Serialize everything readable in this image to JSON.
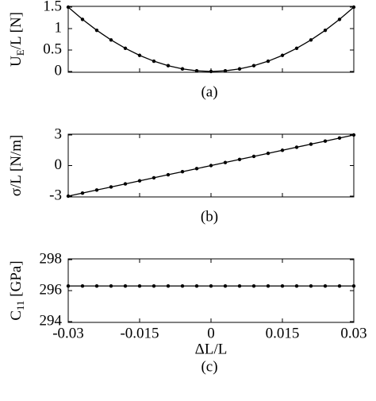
{
  "chart_data": [
    {
      "type": "line",
      "caption": "(a)",
      "ylabel": {
        "main": "U",
        "sub": "E",
        "rest": "/L [N]"
      },
      "x": [
        -0.03,
        -0.027,
        -0.024,
        -0.021,
        -0.018,
        -0.015,
        -0.012,
        -0.009,
        -0.006,
        -0.003,
        0,
        0.003,
        0.006,
        0.009,
        0.012,
        0.015,
        0.018,
        0.021,
        0.024,
        0.027,
        0.03
      ],
      "values": [
        1.5,
        1.215,
        0.96,
        0.735,
        0.54,
        0.375,
        0.24,
        0.135,
        0.06,
        0.015,
        0,
        0.015,
        0.06,
        0.135,
        0.24,
        0.375,
        0.54,
        0.735,
        0.96,
        1.215,
        1.5
      ],
      "color": "#000000",
      "xlim": [
        -0.03,
        0.03
      ],
      "xticks": [
        -0.03,
        -0.015,
        0,
        0.015,
        0.03
      ],
      "ylim": [
        0,
        1.5
      ],
      "yticks": [
        0,
        0.5,
        1,
        1.5
      ]
    },
    {
      "type": "line",
      "caption": "(b)",
      "ylabel": {
        "main": "σ/L [N/m]"
      },
      "x": [
        -0.03,
        -0.027,
        -0.024,
        -0.021,
        -0.018,
        -0.015,
        -0.012,
        -0.009,
        -0.006,
        -0.003,
        0,
        0.003,
        0.006,
        0.009,
        0.012,
        0.015,
        0.018,
        0.021,
        0.024,
        0.027,
        0.03
      ],
      "values": [
        -3,
        -2.7,
        -2.4,
        -2.1,
        -1.8,
        -1.5,
        -1.2,
        -0.9,
        -0.6,
        -0.3,
        0,
        0.3,
        0.6,
        0.9,
        1.2,
        1.5,
        1.8,
        2.1,
        2.4,
        2.7,
        3
      ],
      "color": "#000000",
      "xlim": [
        -0.03,
        0.03
      ],
      "xticks": [
        -0.03,
        -0.015,
        0,
        0.015,
        0.03
      ],
      "ylim": [
        -3,
        3
      ],
      "yticks": [
        -3,
        0,
        3
      ]
    },
    {
      "type": "line",
      "caption": "(c)",
      "ylabel": {
        "main": "C",
        "sub": "11",
        "rest": " [GPa]"
      },
      "xlabel": "ΔL/L",
      "x": [
        -0.03,
        -0.027,
        -0.024,
        -0.021,
        -0.018,
        -0.015,
        -0.012,
        -0.009,
        -0.006,
        -0.003,
        0,
        0.003,
        0.006,
        0.009,
        0.012,
        0.015,
        0.018,
        0.021,
        0.024,
        0.027,
        0.03
      ],
      "values": [
        296.3,
        296.3,
        296.3,
        296.3,
        296.3,
        296.3,
        296.3,
        296.3,
        296.3,
        296.3,
        296.3,
        296.3,
        296.3,
        296.3,
        296.3,
        296.3,
        296.3,
        296.3,
        296.3,
        296.3,
        296.3
      ],
      "color": "#000000",
      "xlim": [
        -0.03,
        0.03
      ],
      "xticks": [
        -0.03,
        -0.015,
        0,
        0.015,
        0.03
      ],
      "ylim": [
        294,
        298
      ],
      "yticks": [
        294,
        296,
        298
      ]
    }
  ]
}
